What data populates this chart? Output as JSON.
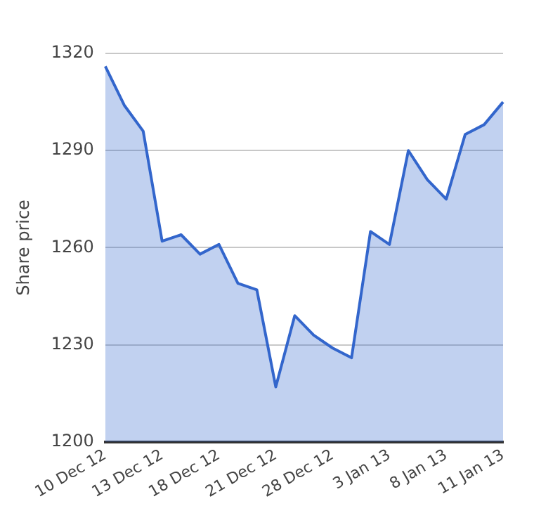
{
  "chart_data": {
    "type": "area",
    "ylabel": "Share price",
    "categories": [
      "10 Dec 12",
      null,
      null,
      "13 Dec 12",
      null,
      null,
      "18 Dec 12",
      null,
      null,
      "21 Dec 12",
      null,
      null,
      "28 Dec 12",
      null,
      null,
      "3 Jan 13",
      null,
      null,
      "8 Jan 13",
      null,
      null,
      "11 Jan 13"
    ],
    "series": [
      {
        "color": "#3366cc",
        "values": [
          1316,
          1304,
          1296,
          1262,
          1264,
          1258,
          1261,
          1249,
          1247,
          1217,
          1239,
          1233,
          1229,
          1226,
          1265,
          1261,
          1290,
          1281,
          1275,
          1295,
          1298,
          1305
        ]
      }
    ],
    "ylim": [
      1200,
      1320
    ],
    "yticks": [
      1200,
      1230,
      1260,
      1290,
      1320
    ],
    "grid": "y",
    "legend": false
  }
}
